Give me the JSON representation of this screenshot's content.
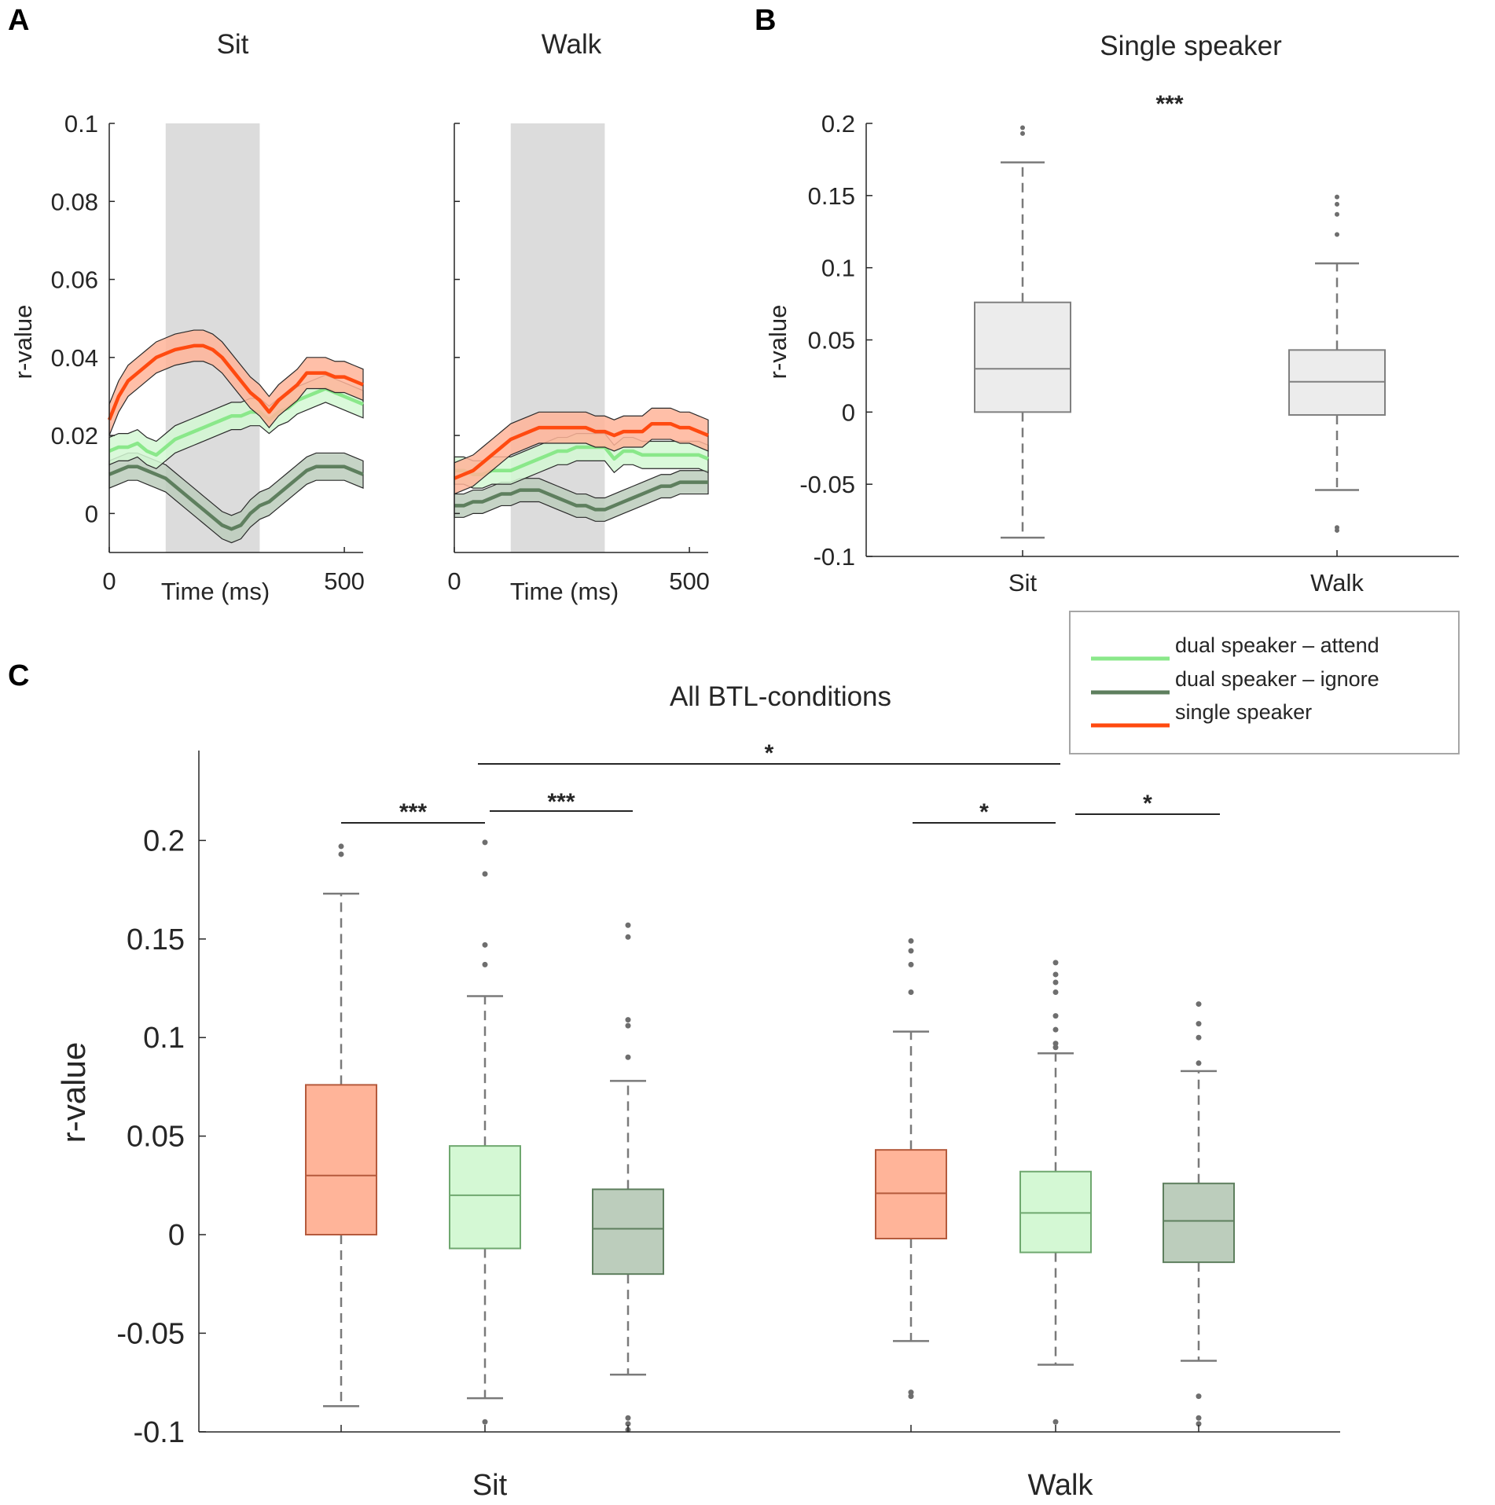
{
  "figure": {
    "panel_labels": [
      "A",
      "B",
      "C"
    ]
  },
  "colors": {
    "single": "#ff4a10",
    "single_fill": "#ffb499",
    "attend": "#8ae88a",
    "attend_fill": "#d4f8d4",
    "ignore": "#5e7f5e",
    "ignore_fill": "#bccdbc",
    "box_gray_fill": "#ececec",
    "box_gray_line": "#808080",
    "shade": "#dcdcdc"
  },
  "legend": {
    "items": [
      {
        "label": "dual speaker – attend",
        "series": "attend"
      },
      {
        "label": "dual speaker – ignore",
        "series": "ignore"
      },
      {
        "label": "single speaker",
        "series": "single"
      }
    ]
  },
  "chart_data": [
    {
      "id": "A",
      "type": "line",
      "panel_label": "A",
      "ylabel": "r-value",
      "ylim": [
        -0.01,
        0.1
      ],
      "yticks": [
        0,
        0.02,
        0.04,
        0.06,
        0.08,
        0.1
      ],
      "ytick_labels": [
        "0",
        "0.02",
        "0.04",
        "0.06",
        "0.08",
        "0.1"
      ],
      "xlim": [
        0,
        540
      ],
      "xticks": [
        0,
        500
      ],
      "xtick_labels": [
        "0",
        "500"
      ],
      "xlabel": "Time (ms)",
      "subplots": [
        {
          "title": "Sit",
          "shade": [
            120,
            320
          ],
          "x": [
            0,
            20,
            40,
            60,
            80,
            100,
            120,
            140,
            160,
            180,
            200,
            220,
            240,
            260,
            280,
            300,
            320,
            340,
            360,
            380,
            400,
            420,
            440,
            460,
            480,
            500,
            520,
            540
          ],
          "series": [
            {
              "name": "single",
              "values": [
                0.024,
                0.03,
                0.034,
                0.036,
                0.038,
                0.04,
                0.041,
                0.042,
                0.0425,
                0.043,
                0.043,
                0.042,
                0.04,
                0.037,
                0.034,
                0.031,
                0.029,
                0.026,
                0.029,
                0.031,
                0.033,
                0.036,
                0.036,
                0.036,
                0.035,
                0.035,
                0.034,
                0.033
              ],
              "band": 0.004
            },
            {
              "name": "attend",
              "values": [
                0.016,
                0.017,
                0.017,
                0.018,
                0.016,
                0.015,
                0.017,
                0.019,
                0.02,
                0.021,
                0.022,
                0.023,
                0.024,
                0.025,
                0.025,
                0.026,
                0.026,
                0.024,
                0.026,
                0.027,
                0.029,
                0.03,
                0.031,
                0.032,
                0.031,
                0.03,
                0.029,
                0.028
              ],
              "band": 0.0035
            },
            {
              "name": "ignore",
              "values": [
                0.01,
                0.011,
                0.012,
                0.012,
                0.011,
                0.01,
                0.009,
                0.007,
                0.005,
                0.003,
                0.001,
                -0.001,
                -0.003,
                -0.004,
                -0.003,
                0.0,
                0.002,
                0.003,
                0.005,
                0.007,
                0.009,
                0.011,
                0.012,
                0.012,
                0.012,
                0.012,
                0.011,
                0.01
              ],
              "band": 0.0035
            }
          ]
        },
        {
          "title": "Walk",
          "shade": [
            120,
            320
          ],
          "x": [
            0,
            20,
            40,
            60,
            80,
            100,
            120,
            140,
            160,
            180,
            200,
            220,
            240,
            260,
            280,
            300,
            320,
            340,
            360,
            380,
            400,
            420,
            440,
            460,
            480,
            500,
            520,
            540
          ],
          "series": [
            {
              "name": "single",
              "values": [
                0.009,
                0.01,
                0.011,
                0.013,
                0.015,
                0.017,
                0.019,
                0.02,
                0.021,
                0.022,
                0.022,
                0.022,
                0.022,
                0.022,
                0.022,
                0.021,
                0.021,
                0.02,
                0.021,
                0.021,
                0.021,
                0.023,
                0.023,
                0.023,
                0.022,
                0.022,
                0.021,
                0.02
              ],
              "band": 0.004
            },
            {
              "name": "attend",
              "values": [
                0.011,
                0.011,
                0.01,
                0.01,
                0.011,
                0.011,
                0.011,
                0.012,
                0.013,
                0.014,
                0.015,
                0.016,
                0.016,
                0.017,
                0.017,
                0.017,
                0.017,
                0.014,
                0.016,
                0.016,
                0.015,
                0.015,
                0.015,
                0.015,
                0.015,
                0.015,
                0.015,
                0.014
              ],
              "band": 0.0035
            },
            {
              "name": "ignore",
              "values": [
                0.002,
                0.002,
                0.003,
                0.003,
                0.004,
                0.005,
                0.005,
                0.006,
                0.006,
                0.006,
                0.005,
                0.004,
                0.003,
                0.002,
                0.002,
                0.001,
                0.001,
                0.002,
                0.003,
                0.004,
                0.005,
                0.006,
                0.007,
                0.007,
                0.008,
                0.008,
                0.008,
                0.008
              ],
              "band": 0.003
            }
          ]
        }
      ]
    },
    {
      "id": "B",
      "type": "box",
      "panel_label": "B",
      "title": "Single speaker",
      "ylabel": "r-value",
      "ylim": [
        -0.1,
        0.2
      ],
      "yticks": [
        -0.1,
        -0.05,
        0,
        0.05,
        0.1,
        0.15,
        0.2
      ],
      "ytick_labels": [
        "-0.1",
        "-0.05",
        "0",
        "0.05",
        "0.1",
        "0.15",
        "0.2"
      ],
      "categories": [
        "Sit",
        "Walk"
      ],
      "boxes": [
        {
          "category": "Sit",
          "q1": 0.0,
          "median": 0.03,
          "q3": 0.076,
          "whislo": -0.087,
          "whishi": 0.173,
          "outliers": [
            0.193,
            0.197
          ]
        },
        {
          "category": "Walk",
          "q1": -0.002,
          "median": 0.021,
          "q3": 0.043,
          "whislo": -0.054,
          "whishi": 0.103,
          "outliers": [
            0.123,
            0.137,
            0.144,
            0.149,
            -0.08,
            -0.082
          ]
        }
      ],
      "significance": [
        {
          "between": [
            "Sit",
            "Walk"
          ],
          "label": "***",
          "bracket": false
        }
      ]
    },
    {
      "id": "C",
      "type": "box",
      "panel_label": "C",
      "title": "All BTL-conditions",
      "ylabel": "r-value",
      "ylim": [
        -0.1,
        0.25
      ],
      "yticks": [
        -0.1,
        -0.05,
        0,
        0.05,
        0.1,
        0.15,
        0.2
      ],
      "ytick_labels": [
        "-0.1",
        "-0.05",
        "0",
        "0.05",
        "0.1",
        "0.15",
        "0.2"
      ],
      "categories": [
        "Sit",
        "Walk"
      ],
      "groups": [
        {
          "category": "Sit",
          "boxes": [
            {
              "series": "single",
              "q1": 0.0,
              "median": 0.03,
              "q3": 0.076,
              "whislo": -0.087,
              "whishi": 0.173,
              "outliers": [
                0.193,
                0.197
              ]
            },
            {
              "series": "attend",
              "q1": -0.007,
              "median": 0.02,
              "q3": 0.045,
              "whislo": -0.083,
              "whishi": 0.121,
              "outliers": [
                0.137,
                0.147,
                0.183,
                0.199,
                -0.095
              ]
            },
            {
              "series": "ignore",
              "q1": -0.02,
              "median": 0.003,
              "q3": 0.023,
              "whislo": -0.071,
              "whishi": 0.078,
              "outliers": [
                0.09,
                0.106,
                0.109,
                0.151,
                0.157,
                -0.093,
                -0.096,
                -0.099
              ]
            }
          ]
        },
        {
          "category": "Walk",
          "boxes": [
            {
              "series": "single",
              "q1": -0.002,
              "median": 0.021,
              "q3": 0.043,
              "whislo": -0.054,
              "whishi": 0.103,
              "outliers": [
                0.123,
                0.137,
                0.144,
                0.149,
                -0.08,
                -0.082
              ]
            },
            {
              "series": "attend",
              "q1": -0.009,
              "median": 0.011,
              "q3": 0.032,
              "whislo": -0.066,
              "whishi": 0.092,
              "outliers": [
                0.095,
                0.097,
                0.104,
                0.111,
                0.123,
                0.128,
                0.132,
                0.138,
                -0.095
              ]
            },
            {
              "series": "ignore",
              "q1": -0.014,
              "median": 0.007,
              "q3": 0.026,
              "whislo": -0.064,
              "whishi": 0.083,
              "outliers": [
                0.087,
                0.1,
                0.107,
                0.117,
                -0.082,
                -0.093,
                -0.096
              ]
            }
          ]
        }
      ],
      "significance": [
        {
          "between": [
            "Sit single",
            "Sit attend"
          ],
          "label": "***"
        },
        {
          "between": [
            "Sit attend",
            "Sit ignore"
          ],
          "label": "***"
        },
        {
          "between": [
            "Sit attend",
            "Walk attend"
          ],
          "label": "*"
        },
        {
          "between": [
            "Walk single",
            "Walk attend"
          ],
          "label": "*"
        },
        {
          "between": [
            "Walk attend",
            "Walk ignore"
          ],
          "label": "*"
        }
      ]
    }
  ]
}
